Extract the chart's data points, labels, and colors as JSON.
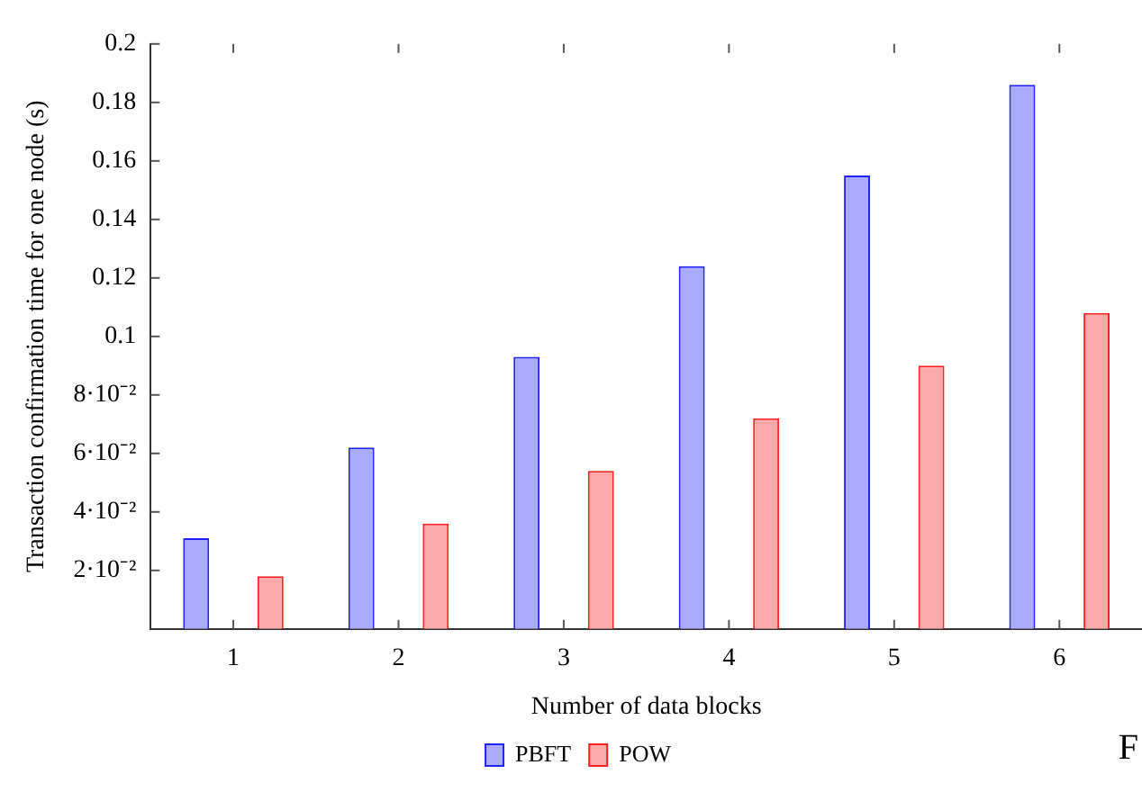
{
  "chart_data": {
    "type": "bar",
    "xlabel": "Number of data blocks",
    "ylabel": "Transaction confirmation time for one node (s)",
    "categories": [
      "1",
      "2",
      "3",
      "4",
      "5",
      "6"
    ],
    "series": [
      {
        "name": "PBFT",
        "color": "#aaaaff",
        "values": [
          0.031,
          0.062,
          0.093,
          0.124,
          0.155,
          0.186
        ]
      },
      {
        "name": "POW",
        "color": "#ffaaaa",
        "values": [
          0.018,
          0.036,
          0.054,
          0.072,
          0.09,
          0.108
        ]
      }
    ],
    "ylim": [
      0,
      0.2
    ],
    "yticks": [
      {
        "value": 0.02,
        "label": "2·10⁻²"
      },
      {
        "value": 0.04,
        "label": "4·10⁻²"
      },
      {
        "value": 0.06,
        "label": "6·10⁻²"
      },
      {
        "value": 0.08,
        "label": "8·10⁻²"
      },
      0.1,
      0.12,
      0.14,
      0.16,
      0.18,
      0.2
    ],
    "grid": false,
    "legend": "bottom",
    "annotations": [
      "F"
    ]
  }
}
